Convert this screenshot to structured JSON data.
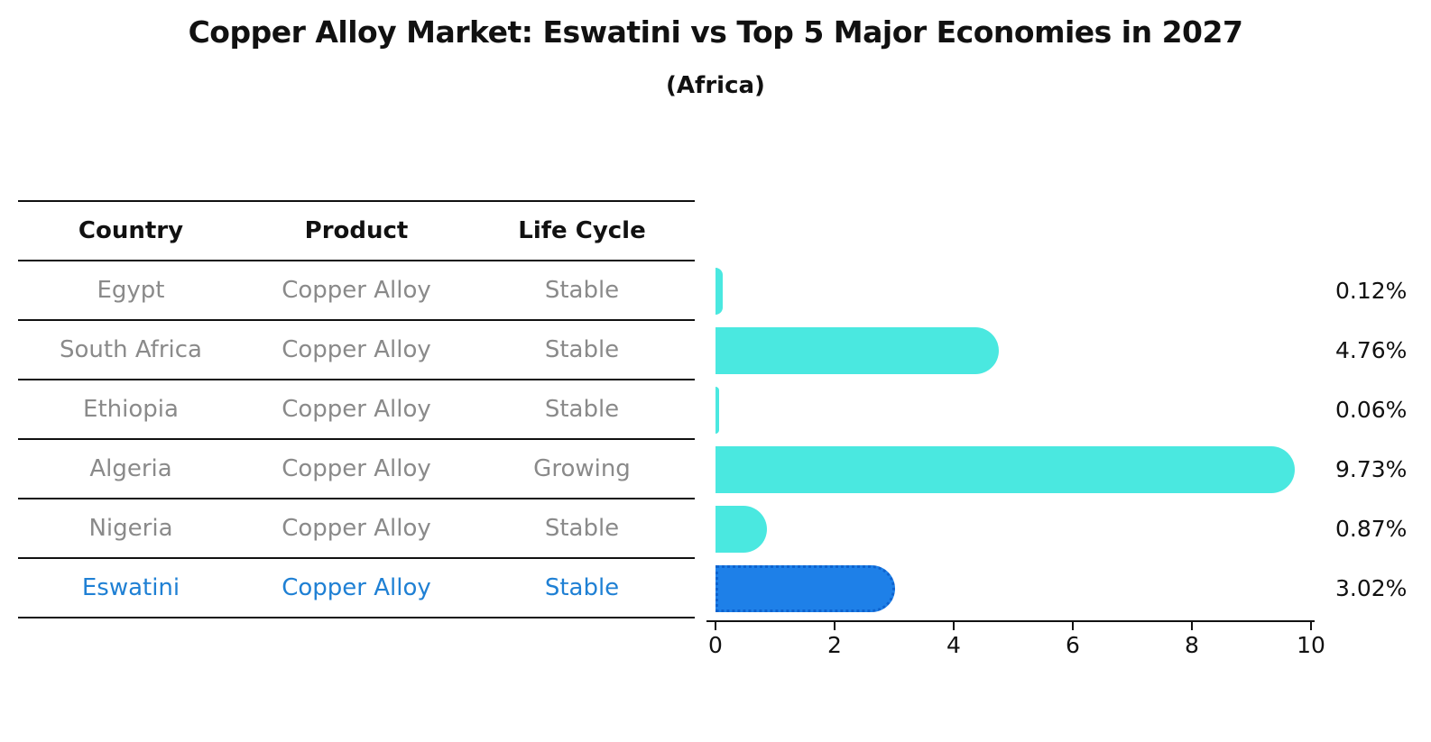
{
  "title": "Copper Alloy Market: Eswatini vs Top 5 Major Economies in 2027",
  "subtitle": "(Africa)",
  "table": {
    "headers": [
      "Country",
      "Product",
      "Life Cycle"
    ],
    "rows": [
      {
        "country": "Egypt",
        "product": "Copper Alloy",
        "life_cycle": "Stable",
        "highlight": false
      },
      {
        "country": "South Africa",
        "product": "Copper Alloy",
        "life_cycle": "Stable",
        "highlight": false
      },
      {
        "country": "Ethiopia",
        "product": "Copper Alloy",
        "life_cycle": "Stable",
        "highlight": false
      },
      {
        "country": "Algeria",
        "product": "Copper Alloy",
        "life_cycle": "Growing",
        "highlight": false
      },
      {
        "country": "Nigeria",
        "product": "Copper Alloy",
        "life_cycle": "Stable",
        "highlight": false
      },
      {
        "country": "Eswatini",
        "product": "Copper Alloy",
        "life_cycle": "Stable",
        "highlight": true
      }
    ]
  },
  "chart_data": {
    "type": "bar",
    "orientation": "horizontal",
    "title": "Copper Alloy Market: Eswatini vs Top 5 Major Economies in 2027",
    "subtitle": "(Africa)",
    "categories": [
      "Egypt",
      "South Africa",
      "Ethiopia",
      "Algeria",
      "Nigeria",
      "Eswatini"
    ],
    "values": [
      0.12,
      4.76,
      0.06,
      9.73,
      0.87,
      3.02
    ],
    "value_labels": [
      "0.12%",
      "4.76%",
      "0.06%",
      "9.73%",
      "0.87%",
      "3.02%"
    ],
    "xlim": [
      0,
      10
    ],
    "xticks": [
      0,
      2,
      4,
      6,
      8,
      10
    ],
    "grid": false,
    "legend": false,
    "highlight_index": 5
  },
  "colors": {
    "bar": "#4ae8e0",
    "highlight_bar": "#1e80e8",
    "highlight_border": "#0e63cf",
    "highlight_text": "#1f80d4",
    "table_text": "#8a8a8a",
    "heading_text": "#111111"
  }
}
